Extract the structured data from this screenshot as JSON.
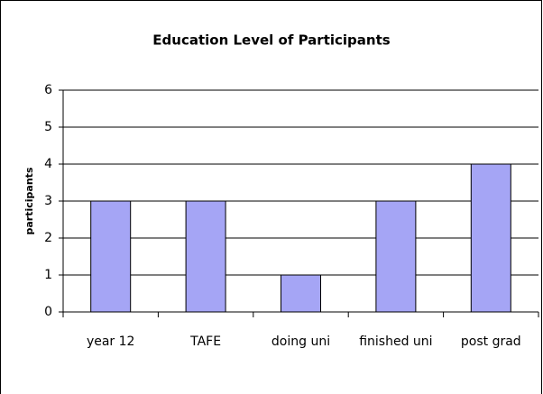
{
  "chart_data": {
    "type": "bar",
    "title": "Education Level of Participants",
    "ylabel": "participants",
    "categories": [
      "year 12",
      "TAFE",
      "doing uni",
      "finished uni",
      "post grad"
    ],
    "values": [
      3,
      3,
      1,
      3,
      4
    ],
    "color": "#a5a5f5",
    "ylim": [
      0,
      6
    ],
    "yticks": [
      0,
      1,
      2,
      3,
      4,
      5,
      6
    ],
    "grid": true
  }
}
